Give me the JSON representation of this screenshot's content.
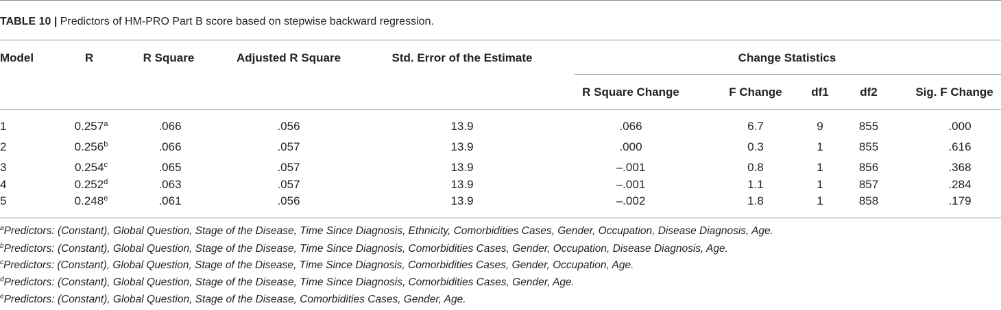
{
  "caption": {
    "label": "TABLE 10 |",
    "text": " Predictors of HM-PRO Part B score based on stepwise backward regression."
  },
  "headers": {
    "model": "Model",
    "r": "R",
    "r_square": "R Square",
    "adjusted_r_square": "Adjusted R Square",
    "std_error": "Std. Error of the Estimate",
    "change_statistics": "Change Statistics",
    "r_square_change": "R Square Change",
    "f_change": "F Change",
    "df1": "df1",
    "df2": "df2",
    "sig_f_change": "Sig. F Change"
  },
  "rows": [
    {
      "model": "1",
      "r": "0.257",
      "r_sup": "a",
      "r_square": ".066",
      "adjusted_r_square": ".056",
      "std_error": "13.9",
      "r_square_change": ".066",
      "f_change": "6.7",
      "df1": "9",
      "df2": "855",
      "sig_f_change": ".000"
    },
    {
      "model": "2",
      "r": "0.256",
      "r_sup": "b",
      "r_square": ".066",
      "adjusted_r_square": ".057",
      "std_error": "13.9",
      "r_square_change": ".000",
      "f_change": "0.3",
      "df1": "1",
      "df2": "855",
      "sig_f_change": ".616"
    },
    {
      "model": "3",
      "r": "0.254",
      "r_sup": "c",
      "r_square": ".065",
      "adjusted_r_square": ".057",
      "std_error": "13.9",
      "r_square_change": "–.001",
      "f_change": "0.8",
      "df1": "1",
      "df2": "856",
      "sig_f_change": ".368"
    },
    {
      "model": "4",
      "r": "0.252",
      "r_sup": "d",
      "r_square": ".063",
      "adjusted_r_square": ".057",
      "std_error": "13.9",
      "r_square_change": "–.001",
      "f_change": "1.1",
      "df1": "1",
      "df2": "857",
      "sig_f_change": ".284"
    },
    {
      "model": "5",
      "r": "0.248",
      "r_sup": "e",
      "r_square": ".061",
      "adjusted_r_square": ".056",
      "std_error": "13.9",
      "r_square_change": "–.002",
      "f_change": "1.8",
      "df1": "1",
      "df2": "858",
      "sig_f_change": ".179"
    }
  ],
  "footnotes": [
    {
      "mark": "a",
      "text": "Predictors: (Constant), Global Question, Stage of the Disease, Time Since Diagnosis, Ethnicity, Comorbidities Cases, Gender, Occupation, Disease Diagnosis, Age."
    },
    {
      "mark": "b",
      "text": "Predictors: (Constant), Global Question, Stage of the Disease, Time Since Diagnosis, Comorbidities Cases, Gender, Occupation, Disease Diagnosis, Age."
    },
    {
      "mark": "c",
      "text": "Predictors: (Constant), Global Question, Stage of the Disease, Time Since Diagnosis, Comorbidities Cases, Gender, Occupation, Age."
    },
    {
      "mark": "d",
      "text": "Predictors: (Constant), Global Question, Stage of the Disease, Time Since Diagnosis, Comorbidities Cases, Gender, Age."
    },
    {
      "mark": "e",
      "text": "Predictors: (Constant), Global Question, Stage of the Disease, Comorbidities Cases, Gender, Age."
    }
  ]
}
